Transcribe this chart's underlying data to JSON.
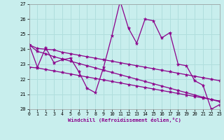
{
  "xlabel": "Windchill (Refroidissement éolien,°C)",
  "xlim": [
    0,
    23
  ],
  "ylim": [
    20,
    27
  ],
  "yticks": [
    20,
    21,
    22,
    23,
    24,
    25,
    26,
    27
  ],
  "xticks": [
    0,
    1,
    2,
    3,
    4,
    5,
    6,
    7,
    8,
    9,
    10,
    11,
    12,
    13,
    14,
    15,
    16,
    17,
    18,
    19,
    20,
    21,
    22,
    23
  ],
  "bg_color": "#c8eeed",
  "line_color": "#8b008b",
  "grid_color": "#b0dedd",
  "series_jagged": [
    24.3,
    22.8,
    24.1,
    23.1,
    23.3,
    23.4,
    22.5,
    21.4,
    21.1,
    22.8,
    24.9,
    27.2,
    25.4,
    24.4,
    26.0,
    25.9,
    24.75,
    25.1,
    23.0,
    22.9,
    21.9,
    21.6,
    20.0,
    20.3
  ],
  "series_top": [
    24.3,
    24.05,
    24.0,
    23.95,
    23.8,
    23.7,
    23.6,
    23.5,
    23.4,
    23.3,
    23.2,
    23.1,
    23.0,
    22.9,
    22.8,
    22.7,
    22.6,
    22.5,
    22.4,
    22.3,
    22.2,
    22.1,
    22.0,
    21.9
  ],
  "series_mid": [
    24.3,
    23.85,
    23.7,
    23.5,
    23.35,
    23.2,
    23.05,
    22.9,
    22.75,
    22.6,
    22.45,
    22.3,
    22.15,
    22.0,
    21.85,
    21.7,
    21.55,
    21.4,
    21.25,
    21.1,
    20.95,
    20.8,
    20.65,
    20.5
  ],
  "series_bot": [
    22.8,
    22.75,
    22.65,
    22.55,
    22.45,
    22.35,
    22.25,
    22.15,
    22.05,
    21.95,
    21.85,
    21.75,
    21.65,
    21.55,
    21.45,
    21.35,
    21.25,
    21.15,
    21.05,
    20.95,
    20.85,
    20.75,
    20.65,
    20.55
  ]
}
